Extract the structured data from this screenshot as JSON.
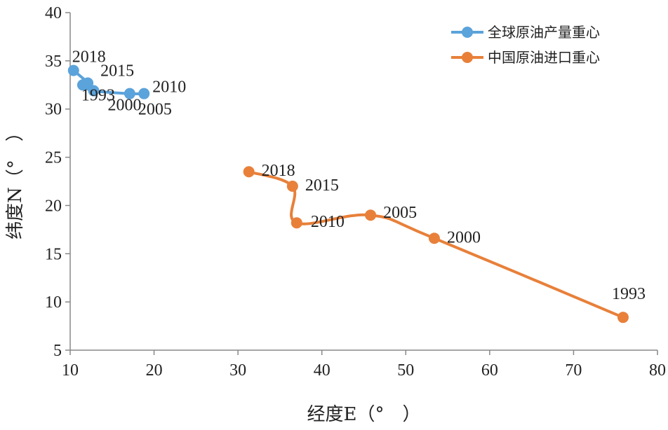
{
  "chart_data": {
    "type": "scatter",
    "xlabel": "经度E（°　）",
    "ylabel": "纬度N（°　）",
    "xlim": [
      10,
      80
    ],
    "ylim": [
      5,
      40
    ],
    "xticks": [
      "10",
      "20",
      "30",
      "40",
      "50",
      "60",
      "70",
      "80"
    ],
    "yticks": [
      "5",
      "10",
      "15",
      "20",
      "25",
      "30",
      "35",
      "40"
    ],
    "grid": false,
    "legend_position": "top-right",
    "series": [
      {
        "name": "全球原油产量重心",
        "color": "#5BA3DB",
        "points": [
          {
            "label": "2018",
            "x": 10.4,
            "y": 34.0
          },
          {
            "label": "2015",
            "x": 12.1,
            "y": 32.7
          },
          {
            "label": "1993",
            "x": 11.5,
            "y": 32.5
          },
          {
            "label": "2000",
            "x": 12.8,
            "y": 31.9
          },
          {
            "label": "2005",
            "x": 17.1,
            "y": 31.6
          },
          {
            "label": "2010",
            "x": 18.8,
            "y": 31.6
          }
        ]
      },
      {
        "name": "中国原油进口重心",
        "color": "#E8803A",
        "points": [
          {
            "label": "1993",
            "x": 75.9,
            "y": 8.4
          },
          {
            "label": "2000",
            "x": 53.4,
            "y": 16.6
          },
          {
            "label": "2005",
            "x": 45.8,
            "y": 19.0
          },
          {
            "label": "2010",
            "x": 37.0,
            "y": 18.2
          },
          {
            "label": "2015",
            "x": 36.5,
            "y": 22.0
          },
          {
            "label": "2018",
            "x": 31.3,
            "y": 23.5
          }
        ]
      }
    ]
  }
}
